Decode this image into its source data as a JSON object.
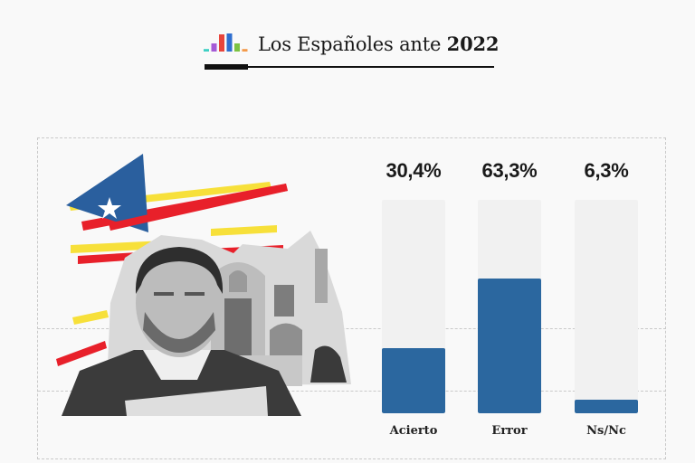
{
  "header": {
    "title_prefix": "Los Españoles ante",
    "title_year": "2022",
    "logo_colors": [
      "#3ed0c4",
      "#a55bd6",
      "#e8453c",
      "#2f6fd0",
      "#7cc242",
      "#f39a4b"
    ]
  },
  "colors": {
    "bar_fill": "#2b679f",
    "bar_track": "#f1f1f1",
    "flag_blue": "#2a5f9e",
    "stripe_red": "#e8202a",
    "stripe_yellow": "#f7e03a"
  },
  "chart_data": {
    "type": "bar",
    "categories": [
      "Acierto",
      "Error",
      "Ns/Nc"
    ],
    "values": [
      30.4,
      63.3,
      6.3
    ],
    "value_labels": [
      "30,4%",
      "63,3%",
      "6,3%"
    ],
    "unit": "%",
    "ylim": [
      0,
      100
    ],
    "grid": false,
    "title": "",
    "xlabel": "",
    "ylabel": ""
  }
}
